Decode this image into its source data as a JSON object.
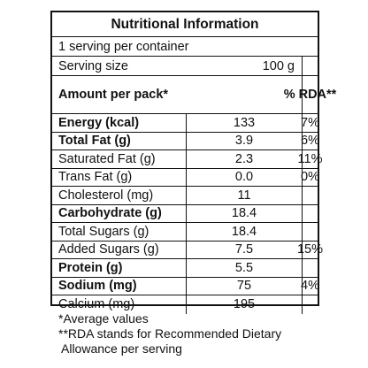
{
  "title": "Nutritional Information",
  "servings_line": "1 serving per container",
  "serving_size": {
    "label": "Serving size",
    "value": "100 g"
  },
  "header": {
    "amount": "Amount per pack*",
    "rda": "% RDA**"
  },
  "rows": [
    {
      "label": "Energy (kcal)",
      "value": "133",
      "rda": "7%",
      "bold": true
    },
    {
      "label": "Total Fat (g)",
      "value": "3.9",
      "rda": "6%",
      "bold": true
    },
    {
      "label": "Saturated Fat (g)",
      "value": "2.3",
      "rda": "11%",
      "bold": false
    },
    {
      "label": "Trans Fat (g)",
      "value": "0.0",
      "rda": "0%",
      "bold": false
    },
    {
      "label": "Cholesterol (mg)",
      "value": "11",
      "rda": "",
      "bold": false
    },
    {
      "label": "Carbohydrate (g)",
      "value": "18.4",
      "rda": "",
      "bold": true
    },
    {
      "label": "Total Sugars (g)",
      "value": "18.4",
      "rda": "",
      "bold": false
    },
    {
      "label": "Added Sugars (g)",
      "value": "7.5",
      "rda": "15%",
      "bold": false
    },
    {
      "label": "Protein (g)",
      "value": "5.5",
      "rda": "",
      "bold": true
    },
    {
      "label": "Sodium (mg)",
      "value": "75",
      "rda": "4%",
      "bold": true
    },
    {
      "label": "Calcium (mg)",
      "value": "195",
      "rda": "",
      "bold": false
    }
  ],
  "footnotes": [
    "*Average values",
    "**RDA stands for Recommended Dietary",
    "Allowance per serving"
  ]
}
